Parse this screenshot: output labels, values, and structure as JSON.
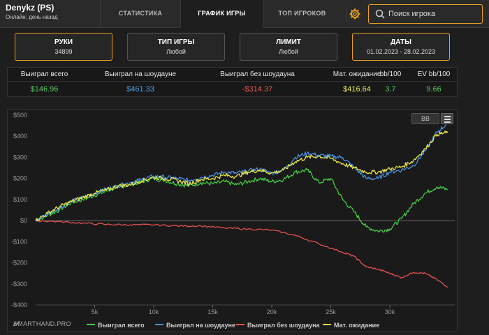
{
  "header": {
    "username": "Denykz (PS)",
    "status": "Онлайн: день назад",
    "tabs": [
      {
        "label": "СТАТИСТИКА",
        "active": false
      },
      {
        "label": "ГРАФИК ИГРЫ",
        "active": true
      },
      {
        "label": "ТОП ИГРОКОВ",
        "active": false
      }
    ],
    "settings_icon": "gear-icon",
    "search_placeholder": "Поиск игрока",
    "accent_color": "#e8a020"
  },
  "filters": [
    {
      "title": "РУКИ",
      "value": "34899"
    },
    {
      "title": "ТИП ИГРЫ",
      "value": "Любой"
    },
    {
      "title": "ЛИМИТ",
      "value": "Любой"
    },
    {
      "title": "ДАТЫ",
      "value": "01.02.2023 - 28.02.2023"
    }
  ],
  "stats": {
    "headers": [
      "Выиграл всего",
      "Выиграл на шоудауне",
      "Выиграл без шоудауна",
      "Мат. ожидание",
      "bb/100",
      "EV bb/100"
    ],
    "values": [
      "$146.96",
      "$461.33",
      "-$314.37",
      "$416.64",
      "3.7",
      "9.66"
    ],
    "colors": [
      "#5cc85c",
      "#4aa0e8",
      "#e85a5a",
      "#e8e84a",
      "#5cc85c",
      "#5cc85c"
    ]
  },
  "chart_controls": {
    "bb_label": "BB",
    "menu_icon": "hamburger-icon"
  },
  "brand": "SMARTHAND.PRO",
  "chart_data": {
    "type": "line",
    "x_max": 34899,
    "xlim": [
      0,
      35500
    ],
    "ylim": [
      -400,
      500
    ],
    "x_ticks": [
      5000,
      10000,
      15000,
      20000,
      25000,
      30000
    ],
    "x_tick_labels": [
      "5k",
      "10k",
      "15k",
      "20k",
      "25k",
      "30k"
    ],
    "y_ticks": [
      500,
      400,
      300,
      200,
      100,
      0,
      -100,
      -200,
      -300,
      -400
    ],
    "y_tick_labels": [
      "$500",
      "$400",
      "$300",
      "$200",
      "$100",
      "$0",
      "-$100",
      "-$200",
      "-$300",
      "-$400"
    ],
    "grid": false,
    "legend_position": "bottom",
    "series": [
      {
        "name": "Выиграл всего",
        "color": "#44cc44",
        "points": [
          [
            0,
            0
          ],
          [
            1000,
            25
          ],
          [
            2000,
            50
          ],
          [
            3000,
            85
          ],
          [
            4000,
            100
          ],
          [
            5000,
            120
          ],
          [
            6000,
            140
          ],
          [
            7000,
            160
          ],
          [
            8000,
            170
          ],
          [
            9000,
            185
          ],
          [
            10000,
            200
          ],
          [
            11000,
            190
          ],
          [
            12000,
            175
          ],
          [
            13000,
            165
          ],
          [
            14000,
            180
          ],
          [
            15000,
            175
          ],
          [
            16000,
            185
          ],
          [
            17000,
            170
          ],
          [
            18000,
            185
          ],
          [
            19000,
            200
          ],
          [
            20000,
            185
          ],
          [
            21000,
            195
          ],
          [
            22000,
            230
          ],
          [
            23000,
            240
          ],
          [
            24000,
            180
          ],
          [
            25000,
            200
          ],
          [
            26000,
            100
          ],
          [
            27000,
            40
          ],
          [
            28000,
            -30
          ],
          [
            29000,
            -50
          ],
          [
            30000,
            -40
          ],
          [
            31000,
            10
          ],
          [
            32000,
            80
          ],
          [
            33000,
            130
          ],
          [
            34000,
            160
          ],
          [
            34899,
            147
          ]
        ]
      },
      {
        "name": "Выиграл на шоудауне",
        "color": "#4a90e0",
        "points": [
          [
            0,
            0
          ],
          [
            1000,
            30
          ],
          [
            2000,
            60
          ],
          [
            3000,
            90
          ],
          [
            4000,
            110
          ],
          [
            5000,
            130
          ],
          [
            6000,
            150
          ],
          [
            7000,
            165
          ],
          [
            8000,
            180
          ],
          [
            9000,
            195
          ],
          [
            10000,
            210
          ],
          [
            11000,
            205
          ],
          [
            12000,
            200
          ],
          [
            13000,
            190
          ],
          [
            14000,
            205
          ],
          [
            15000,
            215
          ],
          [
            16000,
            230
          ],
          [
            17000,
            225
          ],
          [
            18000,
            235
          ],
          [
            19000,
            245
          ],
          [
            20000,
            225
          ],
          [
            21000,
            240
          ],
          [
            22000,
            300
          ],
          [
            23000,
            320
          ],
          [
            24000,
            310
          ],
          [
            25000,
            305
          ],
          [
            26000,
            300
          ],
          [
            27000,
            250
          ],
          [
            28000,
            200
          ],
          [
            29000,
            200
          ],
          [
            30000,
            230
          ],
          [
            31000,
            240
          ],
          [
            32000,
            260
          ],
          [
            33000,
            330
          ],
          [
            34000,
            420
          ],
          [
            34899,
            461
          ]
        ]
      },
      {
        "name": "Выиграл без шоудауна",
        "color": "#e05050",
        "points": [
          [
            0,
            0
          ],
          [
            2000,
            -5
          ],
          [
            4000,
            -12
          ],
          [
            6000,
            -18
          ],
          [
            8000,
            -20
          ],
          [
            10000,
            -20
          ],
          [
            12000,
            -25
          ],
          [
            14000,
            -25
          ],
          [
            16000,
            -35
          ],
          [
            18000,
            -40
          ],
          [
            20000,
            -45
          ],
          [
            22000,
            -70
          ],
          [
            24000,
            -110
          ],
          [
            26000,
            -150
          ],
          [
            27000,
            -170
          ],
          [
            28000,
            -220
          ],
          [
            29000,
            -230
          ],
          [
            30000,
            -250
          ],
          [
            31000,
            -270
          ],
          [
            32000,
            -245
          ],
          [
            33000,
            -250
          ],
          [
            34000,
            -280
          ],
          [
            34899,
            -314
          ]
        ]
      },
      {
        "name": "Мат. ожидание",
        "color": "#e8e84a",
        "points": [
          [
            0,
            0
          ],
          [
            1000,
            35
          ],
          [
            2000,
            65
          ],
          [
            3000,
            90
          ],
          [
            4000,
            110
          ],
          [
            5000,
            130
          ],
          [
            6000,
            145
          ],
          [
            7000,
            165
          ],
          [
            8000,
            170
          ],
          [
            9000,
            190
          ],
          [
            10000,
            205
          ],
          [
            11000,
            200
          ],
          [
            12000,
            190
          ],
          [
            13000,
            175
          ],
          [
            14000,
            195
          ],
          [
            15000,
            200
          ],
          [
            16000,
            215
          ],
          [
            17000,
            210
          ],
          [
            18000,
            230
          ],
          [
            19000,
            240
          ],
          [
            20000,
            225
          ],
          [
            21000,
            240
          ],
          [
            22000,
            280
          ],
          [
            23000,
            300
          ],
          [
            24000,
            305
          ],
          [
            25000,
            295
          ],
          [
            26000,
            270
          ],
          [
            27000,
            250
          ],
          [
            28000,
            230
          ],
          [
            29000,
            230
          ],
          [
            30000,
            245
          ],
          [
            31000,
            255
          ],
          [
            32000,
            285
          ],
          [
            33000,
            340
          ],
          [
            34000,
            410
          ],
          [
            34899,
            417
          ]
        ]
      }
    ]
  }
}
